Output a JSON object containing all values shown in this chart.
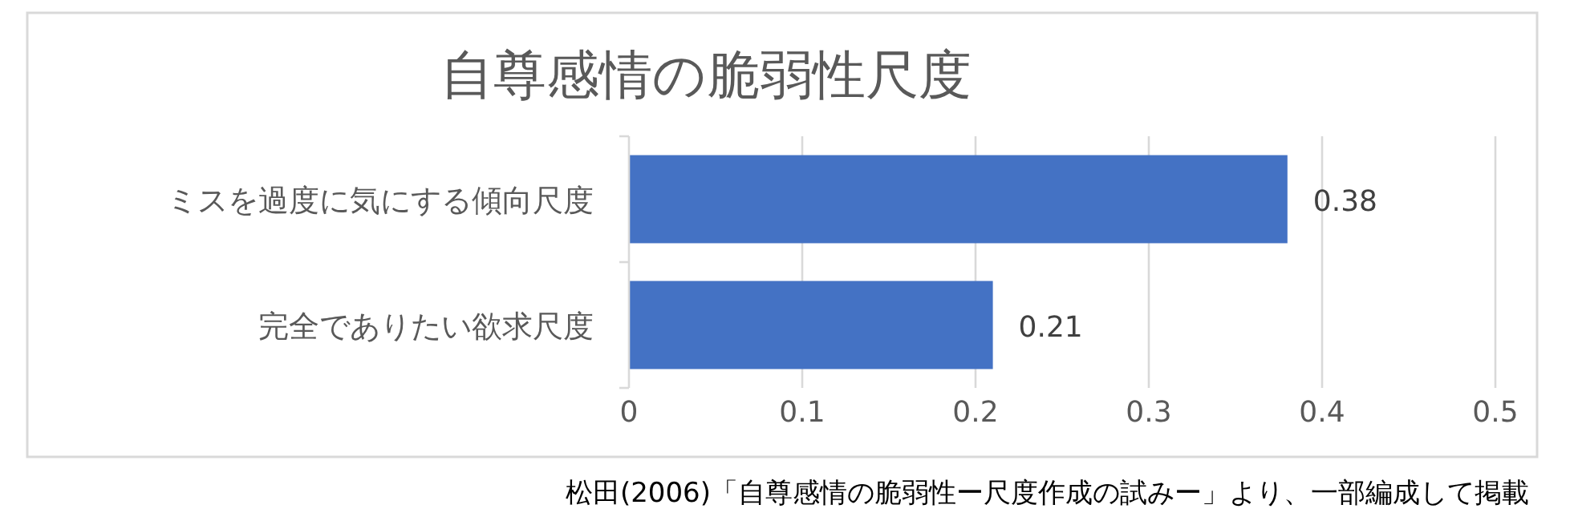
{
  "chart_data": {
    "type": "bar",
    "orientation": "horizontal",
    "title": "自尊感情の脆弱性尺度",
    "categories": [
      "ミスを過度に気にする傾向尺度",
      "完全でありたい欲求尺度"
    ],
    "values": [
      0.38,
      0.21
    ],
    "color": "#4472c4",
    "xlim": [
      0,
      0.5
    ],
    "xticks": [
      0,
      0.1,
      0.2,
      0.3,
      0.4,
      0.5
    ],
    "grid": "x",
    "data_labels": true,
    "annotations": [
      "松田(2006)「自尊感情の脆弱性ー尺度作成の試みー」より、一部編成して掲載"
    ]
  }
}
